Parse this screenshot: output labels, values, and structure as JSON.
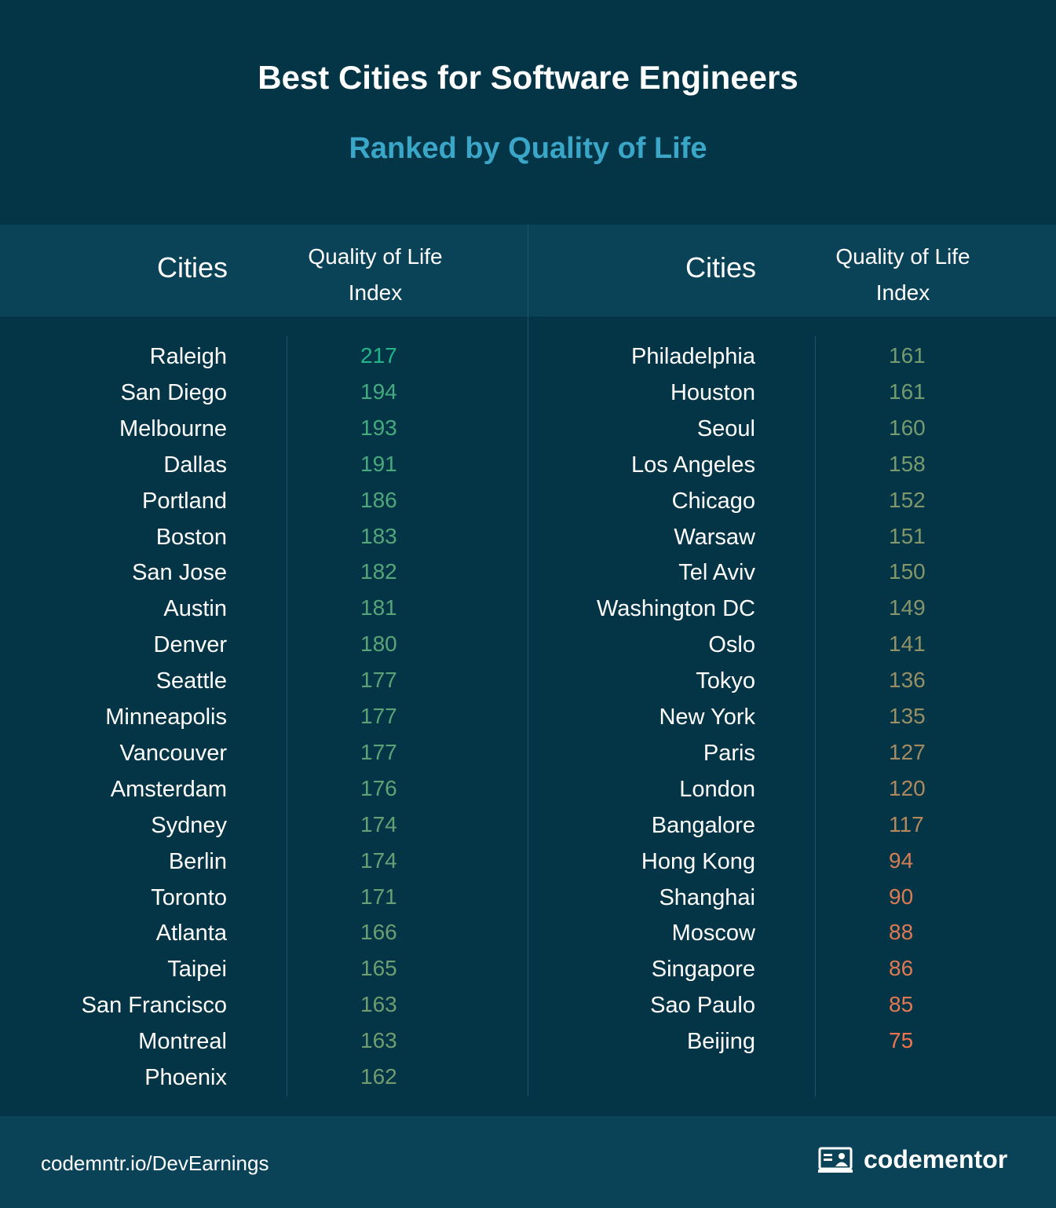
{
  "chart_data": {
    "type": "table",
    "title": "Best Cities for Software Engineers",
    "subtitle": "Ranked by Quality of Life",
    "columns": [
      {
        "cities_header": "Cities",
        "index_header_line1": "Quality of Life",
        "index_header_line2": "Index",
        "rows": [
          {
            "city": "Raleigh",
            "value": 217
          },
          {
            "city": "San Diego",
            "value": 194
          },
          {
            "city": "Melbourne",
            "value": 193
          },
          {
            "city": "Dallas",
            "value": 191
          },
          {
            "city": "Portland",
            "value": 186
          },
          {
            "city": "Boston",
            "value": 183
          },
          {
            "city": "San Jose",
            "value": 182
          },
          {
            "city": "Austin",
            "value": 181
          },
          {
            "city": "Denver",
            "value": 180
          },
          {
            "city": "Seattle",
            "value": 177
          },
          {
            "city": "Minneapolis",
            "value": 177
          },
          {
            "city": "Vancouver",
            "value": 177
          },
          {
            "city": "Amsterdam",
            "value": 176
          },
          {
            "city": "Sydney",
            "value": 174
          },
          {
            "city": "Berlin",
            "value": 174
          },
          {
            "city": "Toronto",
            "value": 171
          },
          {
            "city": "Atlanta",
            "value": 166
          },
          {
            "city": "Taipei",
            "value": 165
          },
          {
            "city": "San Francisco",
            "value": 163
          },
          {
            "city": "Montreal",
            "value": 163
          },
          {
            "city": "Phoenix",
            "value": 162
          }
        ]
      },
      {
        "cities_header": "Cities",
        "index_header_line1": "Quality of Life",
        "index_header_line2": "Index",
        "rows": [
          {
            "city": "Philadelphia",
            "value": 161
          },
          {
            "city": "Houston",
            "value": 161
          },
          {
            "city": "Seoul",
            "value": 160
          },
          {
            "city": "Los Angeles",
            "value": 158
          },
          {
            "city": "Chicago",
            "value": 152
          },
          {
            "city": "Warsaw",
            "value": 151
          },
          {
            "city": "Tel Aviv",
            "value": 150
          },
          {
            "city": "Washington DC",
            "value": 149
          },
          {
            "city": "Oslo",
            "value": 141
          },
          {
            "city": "Tokyo",
            "value": 136
          },
          {
            "city": "New York",
            "value": 135
          },
          {
            "city": "Paris",
            "value": 127
          },
          {
            "city": "London",
            "value": 120
          },
          {
            "city": "Bangalore",
            "value": 117
          },
          {
            "city": "Hong Kong",
            "value": 94
          },
          {
            "city": "Shanghai",
            "value": 90
          },
          {
            "city": "Moscow",
            "value": 88
          },
          {
            "city": "Singapore",
            "value": 86
          },
          {
            "city": "Sao Paulo",
            "value": 85
          },
          {
            "city": "Beijing",
            "value": 75
          }
        ]
      }
    ],
    "color_scale": {
      "high_color": "#23b58a",
      "mid_color": "#8a9468",
      "low_color": "#f0744e",
      "high_value": 217,
      "low_value": 75
    }
  },
  "footer": {
    "link": "codemntr.io/DevEarnings",
    "brand": "codementor",
    "brand_icon": "codementor-logo-icon"
  },
  "colors": {
    "background": "#043546",
    "band": "#0a4258",
    "title": "#ffffff",
    "subtitle": "#3aa6c8"
  }
}
